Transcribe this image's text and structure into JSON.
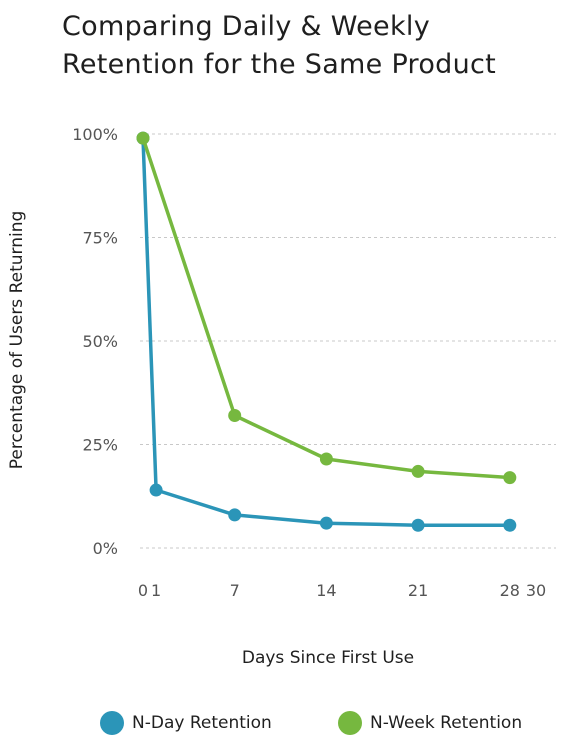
{
  "chart_data": {
    "type": "line",
    "title": [
      "Comparing Daily & Weekly",
      "Retention for the Same Product"
    ],
    "xlabel": "Days Since First Use",
    "ylabel": "Percentage of Users Returning",
    "xlim": [
      0,
      30
    ],
    "ylim": [
      0,
      100
    ],
    "x_ticks": [
      0,
      1,
      7,
      14,
      21,
      28,
      30
    ],
    "y_ticks": [
      0,
      25,
      50,
      75,
      100
    ],
    "y_tick_labels": [
      "0%",
      "25%",
      "50%",
      "75%",
      "100%"
    ],
    "grid": "horizontal dashed",
    "legend_position": "bottom",
    "series": [
      {
        "name": "N-Day Retention",
        "color": "#2b95b8",
        "x": [
          0,
          1,
          7,
          14,
          21,
          28
        ],
        "y": [
          99,
          14,
          8,
          6,
          5.5,
          5.5
        ]
      },
      {
        "name": "N-Week Retention",
        "color": "#76b83f",
        "x": [
          0,
          7,
          14,
          21,
          28
        ],
        "y": [
          99,
          32,
          21.5,
          18.5,
          17
        ]
      }
    ]
  }
}
